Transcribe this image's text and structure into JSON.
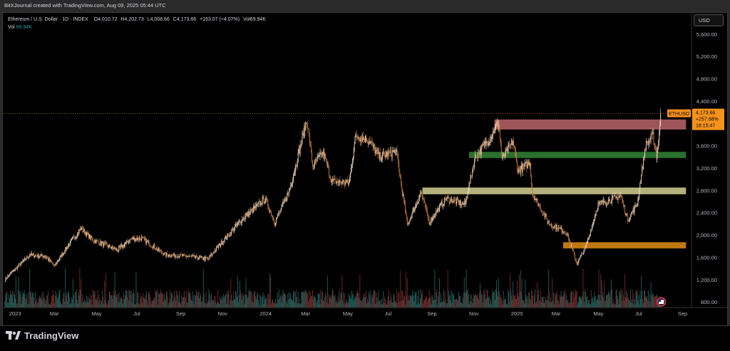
{
  "header": {
    "credit": "BitXJournal created with TradingView.com, Aug 09, 2025 05:44 UTC",
    "symbol": "Ethereum / U.S. Dollar · 1D · INDEX",
    "open_label": "O",
    "open": "4,010.72",
    "high_label": "H",
    "high": "4,202.73",
    "low_label": "L",
    "low": "4,008.66",
    "close_label": "C",
    "close": "4,173.66",
    "change": "+163.07 (+4.07%)",
    "vol_label": "Vol",
    "vol": "69.94K",
    "vol_line_label": "Vol",
    "vol_line_value": "69.94K"
  },
  "currency_button": "USD",
  "brand": "TradingView",
  "colors": {
    "background": "#000000",
    "candle_up": "#f0d9c4",
    "candle_down": "#c07a3c",
    "volume_up": "#1f5f5a",
    "volume_down": "#6e2a2a",
    "price_line": "#f7931a",
    "zone_red": "#c46a6f",
    "zone_green": "#2e7d32",
    "zone_khaki": "#c9c48a",
    "zone_orange": "#d4860f",
    "label_orange": "#f7931a"
  },
  "chart_data": {
    "type": "candlestick",
    "symbol": "ETHUSD",
    "interval": "1D",
    "ylim": [
      700,
      5700
    ],
    "y_ticks": [
      "5,600.00",
      "5,200.00",
      "4,800.00",
      "4,400.00",
      "4,000.00",
      "3,600.00",
      "3,200.00",
      "2,800.00",
      "2,400.00",
      "2,000.00",
      "1,600.00",
      "1,200.00",
      "800.00"
    ],
    "y_tick_values": [
      5600,
      5200,
      4800,
      4400,
      4000,
      3600,
      3200,
      2800,
      2400,
      2000,
      1600,
      1200,
      800
    ],
    "x_ticks": [
      "2023",
      "Mar",
      "May",
      "Jul",
      "Sep",
      "Nov",
      "2024",
      "Mar",
      "May",
      "Jul",
      "Sep",
      "Nov",
      "2025",
      "Mar",
      "May",
      "Jul",
      "Sep"
    ],
    "x_tick_dates": [
      "2023-01-01",
      "2023-03-01",
      "2023-05-01",
      "2023-07-01",
      "2023-09-01",
      "2023-11-01",
      "2024-01-01",
      "2024-03-01",
      "2024-05-01",
      "2024-07-01",
      "2024-09-01",
      "2024-11-01",
      "2025-01-01",
      "2025-03-01",
      "2025-05-01",
      "2025-07-01",
      "2025-09-01"
    ],
    "x_range": [
      "2022-12-27",
      "2025-09-23"
    ],
    "price_path": [
      [
        "2022-12-28",
        1200
      ],
      [
        "2023-01-14",
        1420
      ],
      [
        "2023-02-02",
        1640
      ],
      [
        "2023-02-25",
        1620
      ],
      [
        "2023-03-10",
        1440
      ],
      [
        "2023-03-28",
        1780
      ],
      [
        "2023-04-18",
        2120
      ],
      [
        "2023-05-05",
        1910
      ],
      [
        "2023-06-10",
        1730
      ],
      [
        "2023-06-30",
        1930
      ],
      [
        "2023-07-15",
        1940
      ],
      [
        "2023-08-18",
        1650
      ],
      [
        "2023-09-25",
        1610
      ],
      [
        "2023-10-20",
        1570
      ],
      [
        "2023-11-10",
        1890
      ],
      [
        "2023-12-10",
        2300
      ],
      [
        "2024-01-11",
        2650
      ],
      [
        "2024-01-25",
        2230
      ],
      [
        "2024-02-15",
        2780
      ],
      [
        "2024-03-12",
        4070
      ],
      [
        "2024-03-20",
        3230
      ],
      [
        "2024-04-05",
        3480
      ],
      [
        "2024-04-17",
        2960
      ],
      [
        "2024-05-12",
        2930
      ],
      [
        "2024-05-22",
        3780
      ],
      [
        "2024-06-10",
        3700
      ],
      [
        "2024-06-25",
        3400
      ],
      [
        "2024-07-20",
        3500
      ],
      [
        "2024-08-05",
        2180
      ],
      [
        "2024-08-25",
        2760
      ],
      [
        "2024-09-06",
        2230
      ],
      [
        "2024-09-30",
        2650
      ],
      [
        "2024-10-28",
        2550
      ],
      [
        "2024-11-12",
        3400
      ],
      [
        "2024-12-01",
        3700
      ],
      [
        "2024-12-16",
        4010
      ],
      [
        "2024-12-21",
        3350
      ],
      [
        "2025-01-06",
        3680
      ],
      [
        "2025-01-13",
        3150
      ],
      [
        "2025-01-31",
        3300
      ],
      [
        "2025-02-03",
        2750
      ],
      [
        "2025-02-28",
        2200
      ],
      [
        "2025-03-25",
        2050
      ],
      [
        "2025-04-09",
        1490
      ],
      [
        "2025-04-22",
        1780
      ],
      [
        "2025-05-10",
        2550
      ],
      [
        "2025-06-12",
        2700
      ],
      [
        "2025-06-22",
        2280
      ],
      [
        "2025-07-06",
        2550
      ],
      [
        "2025-07-18",
        3600
      ],
      [
        "2025-07-29",
        3780
      ],
      [
        "2025-08-03",
        3420
      ],
      [
        "2025-08-08",
        3900
      ],
      [
        "2025-08-09",
        4173.66
      ]
    ],
    "zones": [
      {
        "color": "red",
        "from": "2024-12-10",
        "to": "2025-09-15",
        "low": 3890,
        "high": 4070
      },
      {
        "color": "green",
        "from": "2024-11-03",
        "to": "2025-09-15",
        "low": 3380,
        "high": 3490
      },
      {
        "color": "khaki",
        "from": "2024-08-27",
        "to": "2025-09-15",
        "low": 2730,
        "high": 2850
      },
      {
        "color": "orange",
        "from": "2025-03-20",
        "to": "2025-09-15",
        "low": 1760,
        "high": 1870
      }
    ],
    "last_price": 4173.66,
    "price_label": {
      "symbol": "ETHUSD",
      "price": "4,173.66",
      "change": "+257.68%",
      "countdown": "18:15:47"
    },
    "volume_label": "Vol",
    "volume_value": "69.94K",
    "grid": false
  }
}
